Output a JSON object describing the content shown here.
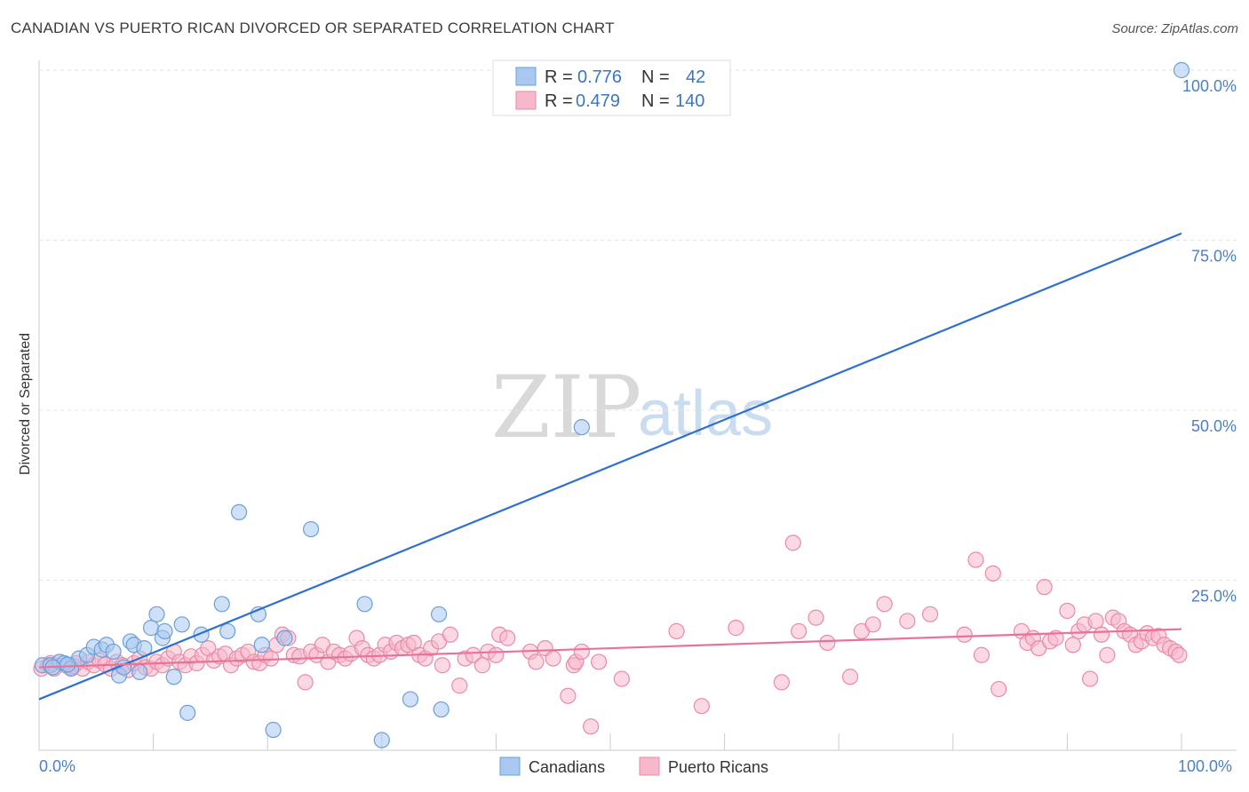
{
  "header": {
    "title": "CANADIAN VS PUERTO RICAN DIVORCED OR SEPARATED CORRELATION CHART",
    "source": "Source: ZipAtlas.com"
  },
  "watermark": {
    "zip": "ZIP",
    "atlas": "atlas"
  },
  "legend": {
    "rows": [
      {
        "r_label": "R =",
        "r_value": "0.776",
        "n_label": "N =",
        "n_value": "42",
        "color": "#a9c8f0"
      },
      {
        "r_label": "R =",
        "r_value": "0.479",
        "n_label": "N =",
        "n_value": "140",
        "color": "#f7b8cb"
      }
    ]
  },
  "bottom_legend": {
    "canadians": "Canadians",
    "puerto_ricans": "Puerto Ricans"
  },
  "chart_data": {
    "type": "scatter",
    "title": "CANADIAN VS PUERTO RICAN DIVORCED OR SEPARATED CORRELATION CHART",
    "xlabel": "",
    "ylabel": "Divorced or Separated",
    "xlim": [
      0,
      100
    ],
    "ylim": [
      0,
      100
    ],
    "x_tick_labels": [
      "0.0%",
      "100.0%"
    ],
    "y_tick_labels": [
      "25.0%",
      "50.0%",
      "75.0%",
      "100.0%"
    ],
    "y_tick_values": [
      25,
      50,
      75,
      100
    ],
    "grid": true,
    "legend_position": "top-center",
    "series": [
      {
        "name": "Canadians",
        "color": "#a9c8f0",
        "stroke": "#6a9fd8",
        "line_color": "#2f6fd0",
        "trend": {
          "x": [
            0,
            100
          ],
          "y": [
            7.5,
            76
          ]
        },
        "points": [
          [
            0.3,
            12.5
          ],
          [
            1.0,
            12.5
          ],
          [
            1.8,
            13.0
          ],
          [
            2.2,
            12.8
          ],
          [
            2.8,
            12.0
          ],
          [
            3.5,
            13.5
          ],
          [
            4.2,
            14.0
          ],
          [
            4.8,
            15.2
          ],
          [
            5.5,
            14.8
          ],
          [
            5.9,
            15.5
          ],
          [
            6.5,
            14.5
          ],
          [
            7.0,
            11.0
          ],
          [
            7.4,
            12.2
          ],
          [
            8.0,
            16.0
          ],
          [
            8.3,
            15.5
          ],
          [
            8.8,
            11.5
          ],
          [
            9.2,
            15.0
          ],
          [
            9.8,
            18.0
          ],
          [
            10.3,
            20.0
          ],
          [
            10.8,
            16.5
          ],
          [
            11.0,
            17.5
          ],
          [
            11.8,
            10.8
          ],
          [
            12.5,
            18.5
          ],
          [
            13.0,
            5.5
          ],
          [
            14.2,
            17.0
          ],
          [
            16.0,
            21.5
          ],
          [
            16.5,
            17.5
          ],
          [
            17.5,
            35.0
          ],
          [
            19.2,
            20.0
          ],
          [
            19.5,
            15.5
          ],
          [
            20.5,
            3.0
          ],
          [
            21.5,
            16.5
          ],
          [
            23.8,
            32.5
          ],
          [
            28.5,
            21.5
          ],
          [
            30.0,
            1.5
          ],
          [
            32.5,
            7.5
          ],
          [
            35.0,
            20.0
          ],
          [
            35.2,
            6.0
          ],
          [
            47.5,
            47.5
          ],
          [
            100,
            100
          ],
          [
            1.2,
            12.2
          ],
          [
            2.5,
            12.6
          ]
        ]
      },
      {
        "name": "Puerto Ricans",
        "color": "#f7b8cb",
        "stroke": "#e98aa8",
        "line_color": "#e8739a",
        "trend": {
          "x": [
            0,
            100
          ],
          "y": [
            12.2,
            17.8
          ]
        },
        "points": [
          [
            0.2,
            12.0
          ],
          [
            0.8,
            12.5
          ],
          [
            1.3,
            12.0
          ],
          [
            1.8,
            13.0
          ],
          [
            2.3,
            12.5
          ],
          [
            2.8,
            12.2
          ],
          [
            3.3,
            12.8
          ],
          [
            3.8,
            12.0
          ],
          [
            4.3,
            13.0
          ],
          [
            4.8,
            12.5
          ],
          [
            5.3,
            13.2
          ],
          [
            5.8,
            12.6
          ],
          [
            6.3,
            12.0
          ],
          [
            6.8,
            13.0
          ],
          [
            7.3,
            12.5
          ],
          [
            7.8,
            11.8
          ],
          [
            8.3,
            12.8
          ],
          [
            8.8,
            13.5
          ],
          [
            9.3,
            12.2
          ],
          [
            9.8,
            12.0
          ],
          [
            10.3,
            13.0
          ],
          [
            10.8,
            12.5
          ],
          [
            11.3,
            13.5
          ],
          [
            11.8,
            14.5
          ],
          [
            12.3,
            13.0
          ],
          [
            12.8,
            12.5
          ],
          [
            13.3,
            13.8
          ],
          [
            13.8,
            12.8
          ],
          [
            14.3,
            14.0
          ],
          [
            14.8,
            15.0
          ],
          [
            15.3,
            13.2
          ],
          [
            15.8,
            13.8
          ],
          [
            16.3,
            14.2
          ],
          [
            16.8,
            12.5
          ],
          [
            17.3,
            13.5
          ],
          [
            17.8,
            14.0
          ],
          [
            18.3,
            14.5
          ],
          [
            18.8,
            13.0
          ],
          [
            19.3,
            12.8
          ],
          [
            19.8,
            14.0
          ],
          [
            20.3,
            13.5
          ],
          [
            20.8,
            15.5
          ],
          [
            21.3,
            17.0
          ],
          [
            21.8,
            16.5
          ],
          [
            22.3,
            14.0
          ],
          [
            22.8,
            13.8
          ],
          [
            23.3,
            10.0
          ],
          [
            23.8,
            14.5
          ],
          [
            24.3,
            14.0
          ],
          [
            24.8,
            15.5
          ],
          [
            25.3,
            13.0
          ],
          [
            25.8,
            14.5
          ],
          [
            26.3,
            14.0
          ],
          [
            26.8,
            13.5
          ],
          [
            27.3,
            14.2
          ],
          [
            27.8,
            16.5
          ],
          [
            28.3,
            15.0
          ],
          [
            28.8,
            14.0
          ],
          [
            29.3,
            13.5
          ],
          [
            29.8,
            14.0
          ],
          [
            30.3,
            15.5
          ],
          [
            30.8,
            14.5
          ],
          [
            31.3,
            15.8
          ],
          [
            31.8,
            15.0
          ],
          [
            32.3,
            15.5
          ],
          [
            32.8,
            15.8
          ],
          [
            33.3,
            14.0
          ],
          [
            33.8,
            13.5
          ],
          [
            34.3,
            15.0
          ],
          [
            35.0,
            16.0
          ],
          [
            35.3,
            12.5
          ],
          [
            36.0,
            17.0
          ],
          [
            36.8,
            9.5
          ],
          [
            37.3,
            13.5
          ],
          [
            38.0,
            14.0
          ],
          [
            38.8,
            12.5
          ],
          [
            39.3,
            14.5
          ],
          [
            40.0,
            14.0
          ],
          [
            40.3,
            17.0
          ],
          [
            41.0,
            16.5
          ],
          [
            43.0,
            14.5
          ],
          [
            43.5,
            13.0
          ],
          [
            44.3,
            15.0
          ],
          [
            45.0,
            13.5
          ],
          [
            46.3,
            8.0
          ],
          [
            46.8,
            12.5
          ],
          [
            47.0,
            13.0
          ],
          [
            47.5,
            14.5
          ],
          [
            48.3,
            3.5
          ],
          [
            49.0,
            13.0
          ],
          [
            51.0,
            10.5
          ],
          [
            55.8,
            17.5
          ],
          [
            58.0,
            6.5
          ],
          [
            61.0,
            18.0
          ],
          [
            65.0,
            10.0
          ],
          [
            66.0,
            30.5
          ],
          [
            66.5,
            17.5
          ],
          [
            68.0,
            19.5
          ],
          [
            69.0,
            15.8
          ],
          [
            71.0,
            10.8
          ],
          [
            72.0,
            17.5
          ],
          [
            73.0,
            18.5
          ],
          [
            74.0,
            21.5
          ],
          [
            76.0,
            19.0
          ],
          [
            78.0,
            20.0
          ],
          [
            81.0,
            17.0
          ],
          [
            82.0,
            28.0
          ],
          [
            82.5,
            14.0
          ],
          [
            83.5,
            26.0
          ],
          [
            84.0,
            9.0
          ],
          [
            86.0,
            17.5
          ],
          [
            86.5,
            15.8
          ],
          [
            87.0,
            16.5
          ],
          [
            87.5,
            15.0
          ],
          [
            88.0,
            24.0
          ],
          [
            88.5,
            16.0
          ],
          [
            89.0,
            16.5
          ],
          [
            90.0,
            20.5
          ],
          [
            90.5,
            15.5
          ],
          [
            91.0,
            17.5
          ],
          [
            91.5,
            18.5
          ],
          [
            92.0,
            10.5
          ],
          [
            92.5,
            19.0
          ],
          [
            93.0,
            17.0
          ],
          [
            93.5,
            14.0
          ],
          [
            94.0,
            19.5
          ],
          [
            94.5,
            19.0
          ],
          [
            95.0,
            17.5
          ],
          [
            95.5,
            17.0
          ],
          [
            96.0,
            15.5
          ],
          [
            96.5,
            16.0
          ],
          [
            97.0,
            17.2
          ],
          [
            97.5,
            16.5
          ],
          [
            98.0,
            16.8
          ],
          [
            98.5,
            15.5
          ],
          [
            99.0,
            15.0
          ],
          [
            99.5,
            14.5
          ],
          [
            99.8,
            14.0
          ],
          [
            1.0,
            12.8
          ],
          [
            3.0,
            12.4
          ]
        ]
      }
    ]
  }
}
